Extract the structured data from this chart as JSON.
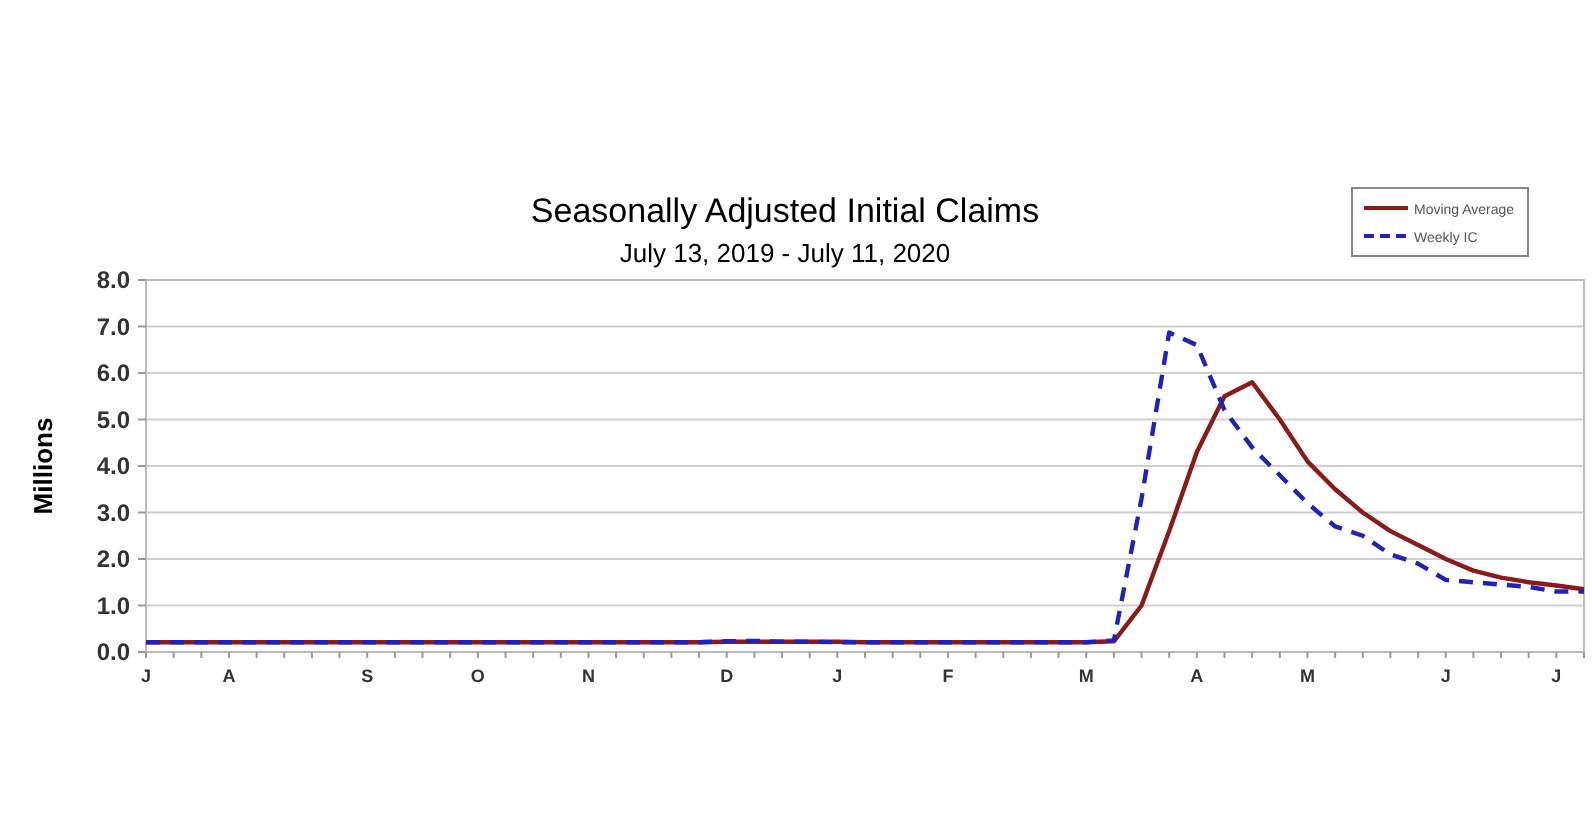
{
  "chart_data": {
    "type": "line",
    "title": "Seasonally Adjusted Initial Claims",
    "subtitle": "July 13, 2019 - July 11, 2020",
    "ylabel": "Millions",
    "categories": [
      "J",
      null,
      null,
      "A",
      null,
      null,
      null,
      null,
      "S",
      null,
      null,
      null,
      "O",
      null,
      null,
      null,
      "N",
      null,
      null,
      null,
      null,
      "D",
      null,
      null,
      null,
      "J",
      null,
      null,
      null,
      "F",
      null,
      null,
      null,
      null,
      "M",
      null,
      null,
      null,
      "A",
      null,
      null,
      null,
      "M",
      null,
      null,
      null,
      null,
      "J",
      null,
      null,
      null,
      "J",
      null
    ],
    "series": [
      {
        "name": "Moving Average",
        "color": "#8b1a1a",
        "line_style": "solid",
        "values": [
          0.21,
          0.21,
          0.21,
          0.21,
          0.21,
          0.21,
          0.21,
          0.21,
          0.21,
          0.21,
          0.21,
          0.21,
          0.21,
          0.21,
          0.21,
          0.21,
          0.21,
          0.21,
          0.21,
          0.21,
          0.21,
          0.22,
          0.22,
          0.22,
          0.22,
          0.22,
          0.21,
          0.21,
          0.21,
          0.21,
          0.21,
          0.21,
          0.21,
          0.21,
          0.21,
          0.23,
          1.0,
          2.6,
          4.3,
          5.5,
          5.8,
          5.0,
          4.1,
          3.5,
          3.0,
          2.6,
          2.3,
          2.0,
          1.75,
          1.6,
          1.5,
          1.43,
          1.35
        ]
      },
      {
        "name": "Weekly IC",
        "color": "#2222bb",
        "line_style": "dashed",
        "values": [
          0.21,
          0.21,
          0.21,
          0.21,
          0.21,
          0.21,
          0.21,
          0.21,
          0.21,
          0.21,
          0.21,
          0.21,
          0.21,
          0.21,
          0.21,
          0.21,
          0.21,
          0.21,
          0.21,
          0.21,
          0.21,
          0.23,
          0.24,
          0.22,
          0.22,
          0.21,
          0.21,
          0.21,
          0.21,
          0.21,
          0.21,
          0.21,
          0.21,
          0.21,
          0.21,
          0.25,
          3.3,
          6.87,
          6.6,
          5.2,
          4.4,
          3.8,
          3.2,
          2.7,
          2.5,
          2.1,
          1.9,
          1.55,
          1.5,
          1.45,
          1.4,
          1.3,
          1.3
        ]
      }
    ],
    "ylim": [
      0,
      8
    ],
    "yticks": [
      {
        "value": 0,
        "label": "0.0"
      },
      {
        "value": 1,
        "label": "1.0"
      },
      {
        "value": 2,
        "label": "2.0"
      },
      {
        "value": 3,
        "label": "3.0"
      },
      {
        "value": 4,
        "label": "4.0"
      },
      {
        "value": 5,
        "label": "5.0"
      },
      {
        "value": 6,
        "label": "6.0"
      },
      {
        "value": 7,
        "label": "7.0"
      },
      {
        "value": 8,
        "label": "8.0"
      }
    ],
    "grid": "y",
    "legend": "top right"
  }
}
